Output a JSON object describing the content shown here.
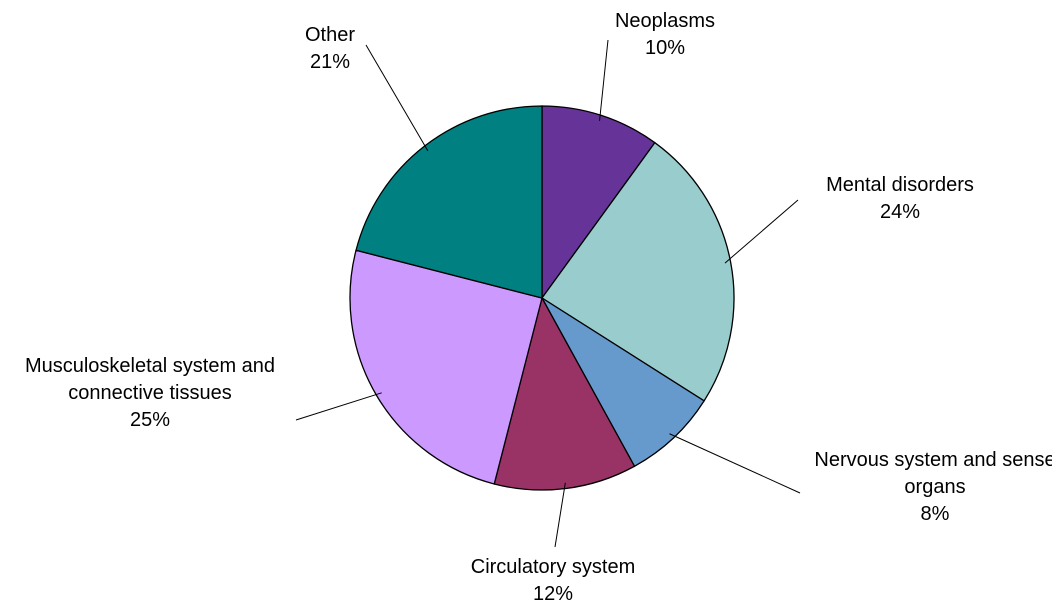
{
  "chart_data": {
    "type": "pie",
    "categories": [
      "Neoplasms",
      "Mental disorders",
      "Nervous system and sense organs",
      "Circulatory system",
      "Musculoskeletal system and connective tissues",
      "Other"
    ],
    "values": [
      10,
      24,
      8,
      12,
      25,
      21
    ],
    "value_labels": [
      "10%",
      "24%",
      "8%",
      "12%",
      "25%",
      "21%"
    ],
    "colors": [
      "#663399",
      "#99cccc",
      "#6699cc",
      "#993366",
      "#cc99ff",
      "#008080"
    ]
  }
}
